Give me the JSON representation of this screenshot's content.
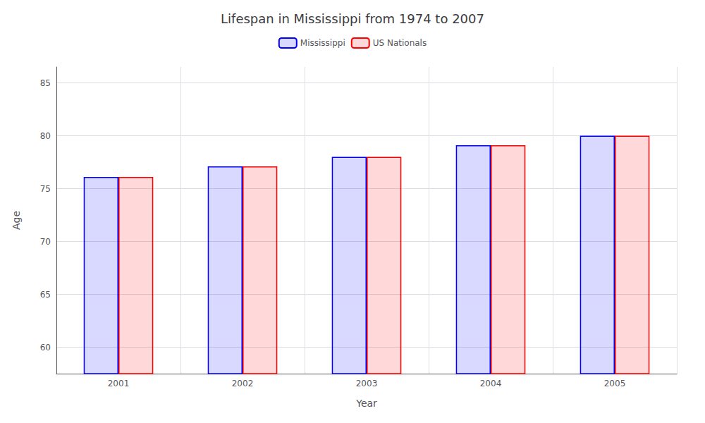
{
  "chart_data": {
    "type": "bar",
    "title": "Lifespan in Mississippi from 1974 to 2007",
    "xlabel": "Year",
    "ylabel": "Age",
    "categories": [
      "2001",
      "2002",
      "2003",
      "2004",
      "2005"
    ],
    "series": [
      {
        "name": "Mississippi",
        "color": "#0000ff",
        "values": [
          76.1,
          77.1,
          78.0,
          79.1,
          80.0
        ]
      },
      {
        "name": "US Nationals",
        "color": "#ff0000",
        "values": [
          76.1,
          77.1,
          78.0,
          79.1,
          80.0
        ]
      }
    ],
    "ylim": [
      57.5,
      86.5
    ],
    "yticks": [
      60,
      65,
      70,
      75,
      80,
      85
    ],
    "grid": true,
    "legend": "top"
  }
}
